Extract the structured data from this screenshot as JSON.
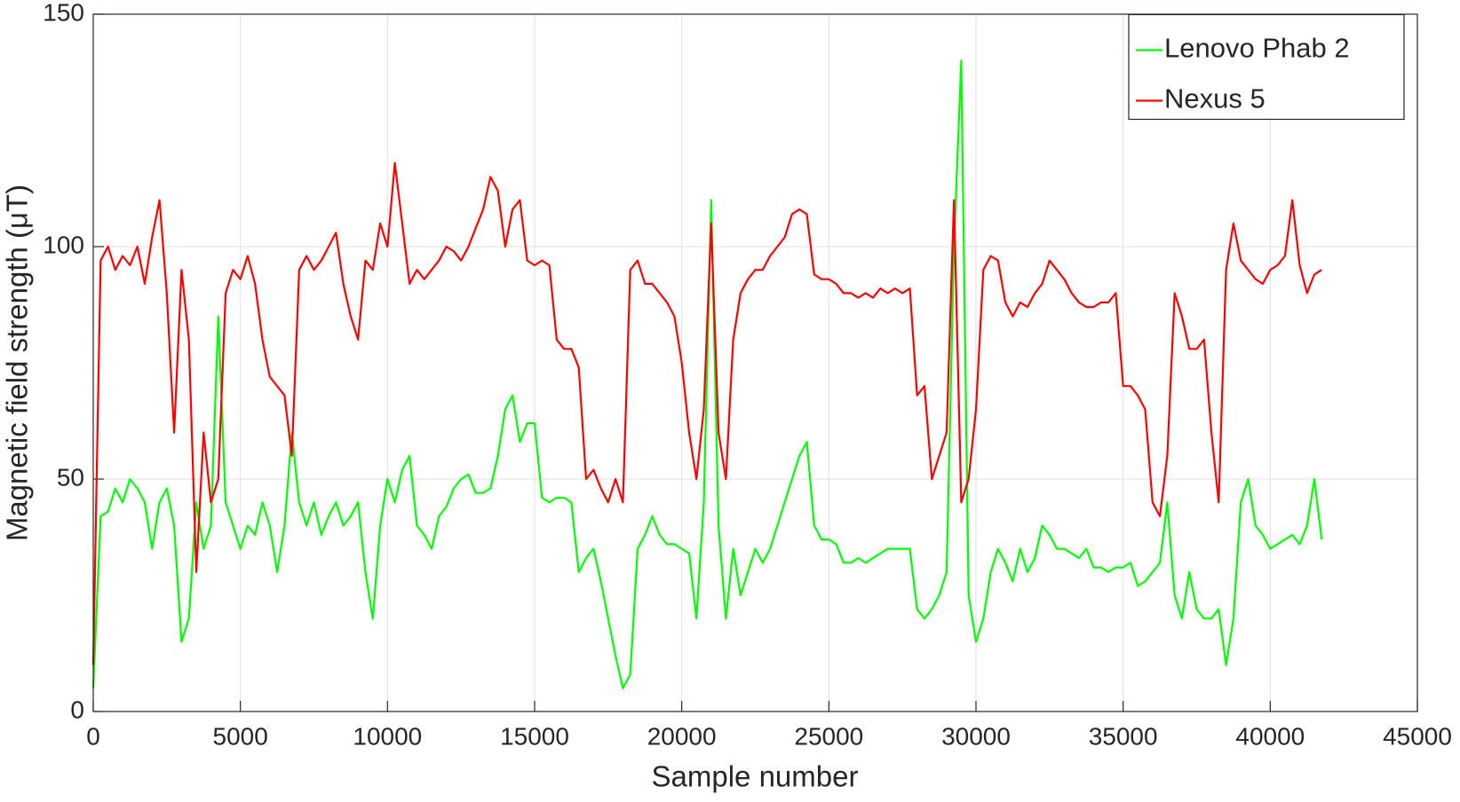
{
  "chart_data": {
    "type": "line",
    "xlabel": "Sample number",
    "ylabel": "Magnetic field strength (μT)",
    "x": [
      0,
      250,
      500,
      750,
      1000,
      1250,
      1500,
      1750,
      2000,
      2250,
      2500,
      2750,
      3000,
      3250,
      3500,
      3750,
      4000,
      4250,
      4500,
      4750,
      5000,
      5250,
      5500,
      5750,
      6000,
      6250,
      6500,
      6750,
      7000,
      7250,
      7500,
      7750,
      8000,
      8250,
      8500,
      8750,
      9000,
      9250,
      9500,
      9750,
      10000,
      10250,
      10500,
      10750,
      11000,
      11250,
      11500,
      11750,
      12000,
      12250,
      12500,
      12750,
      13000,
      13250,
      13500,
      13750,
      14000,
      14250,
      14500,
      14750,
      15000,
      15250,
      15500,
      15750,
      16000,
      16250,
      16500,
      16750,
      17000,
      17250,
      17500,
      17750,
      18000,
      18250,
      18500,
      18750,
      19000,
      19250,
      19500,
      19750,
      20000,
      20250,
      20500,
      20750,
      21000,
      21250,
      21500,
      21750,
      22000,
      22250,
      22500,
      22750,
      23000,
      23250,
      23500,
      23750,
      24000,
      24250,
      24500,
      24750,
      25000,
      25250,
      25500,
      25750,
      26000,
      26250,
      26500,
      26750,
      27000,
      27250,
      27500,
      27750,
      28000,
      28250,
      28500,
      28750,
      29000,
      29250,
      29500,
      29750,
      30000,
      30250,
      30500,
      30750,
      31000,
      31250,
      31500,
      31750,
      32000,
      32250,
      32500,
      32750,
      33000,
      33250,
      33500,
      33750,
      34000,
      34250,
      34500,
      34750,
      35000,
      35250,
      35500,
      35750,
      36000,
      36250,
      36500,
      36750,
      37000,
      37250,
      37500,
      37750,
      38000,
      38250,
      38500,
      38750,
      39000,
      39250,
      39500,
      39750,
      40000,
      40250,
      40500,
      40750,
      41000,
      41250,
      41500,
      41750
    ],
    "series": [
      {
        "name": "Lenovo Phab 2",
        "color": "#00ff00",
        "values": [
          5,
          42,
          43,
          48,
          45,
          50,
          48,
          45,
          35,
          45,
          48,
          40,
          15,
          20,
          45,
          35,
          40,
          85,
          45,
          40,
          35,
          40,
          38,
          45,
          40,
          30,
          40,
          60,
          45,
          40,
          45,
          38,
          42,
          45,
          40,
          42,
          45,
          30,
          20,
          40,
          50,
          45,
          52,
          55,
          40,
          38,
          35,
          42,
          44,
          48,
          50,
          51,
          47,
          47,
          48,
          55,
          65,
          68,
          58,
          62,
          62,
          46,
          45,
          46,
          46,
          45,
          30,
          33,
          35,
          28,
          20,
          12,
          5,
          8,
          35,
          38,
          42,
          38,
          36,
          36,
          35,
          34,
          20,
          45,
          110,
          40,
          20,
          35,
          25,
          30,
          35,
          32,
          35,
          40,
          45,
          50,
          55,
          58,
          40,
          37,
          37,
          36,
          32,
          32,
          33,
          32,
          33,
          34,
          35,
          35,
          35,
          35,
          22,
          20,
          22,
          25,
          30,
          100,
          140,
          25,
          15,
          20,
          30,
          35,
          32,
          28,
          35,
          30,
          33,
          40,
          38,
          35,
          35,
          34,
          33,
          35,
          31,
          31,
          30,
          31,
          31,
          32,
          27,
          28,
          30,
          32,
          45,
          25,
          20,
          30,
          22,
          20,
          20,
          22,
          10,
          20,
          45,
          50,
          40,
          38,
          35,
          36,
          37,
          38,
          36,
          40,
          50,
          37
        ]
      },
      {
        "name": "Nexus 5",
        "color": "#ff0000",
        "values": [
          10,
          97,
          100,
          95,
          98,
          96,
          100,
          92,
          102,
          110,
          90,
          60,
          95,
          80,
          30,
          60,
          45,
          50,
          90,
          95,
          93,
          98,
          92,
          80,
          72,
          70,
          68,
          55,
          95,
          98,
          95,
          97,
          100,
          103,
          92,
          85,
          80,
          97,
          95,
          105,
          100,
          118,
          105,
          92,
          95,
          93,
          95,
          97,
          100,
          99,
          97,
          100,
          104,
          108,
          115,
          112,
          100,
          108,
          110,
          97,
          96,
          97,
          96,
          80,
          78,
          78,
          74,
          50,
          52,
          48,
          45,
          50,
          45,
          95,
          97,
          92,
          92,
          90,
          88,
          85,
          75,
          60,
          50,
          65,
          105,
          60,
          50,
          80,
          90,
          93,
          95,
          95,
          98,
          100,
          102,
          107,
          108,
          107,
          94,
          93,
          93,
          92,
          90,
          90,
          89,
          90,
          89,
          91,
          90,
          91,
          90,
          91,
          68,
          70,
          50,
          55,
          60,
          110,
          45,
          50,
          65,
          95,
          98,
          97,
          88,
          85,
          88,
          87,
          90,
          92,
          97,
          95,
          93,
          90,
          88,
          87,
          87,
          88,
          88,
          90,
          70,
          70,
          68,
          65,
          45,
          42,
          55,
          90,
          85,
          78,
          78,
          80,
          60,
          45,
          95,
          105,
          97,
          95,
          93,
          92,
          95,
          96,
          98,
          110,
          96,
          90,
          94,
          95
        ]
      }
    ],
    "xlim": [
      0,
      45000
    ],
    "xticks": [
      0,
      5000,
      10000,
      15000,
      20000,
      25000,
      30000,
      35000,
      40000,
      45000
    ],
    "ylim": [
      0,
      150
    ],
    "yticks": [
      0,
      50,
      100,
      150
    ],
    "grid": true,
    "legend": "northeast"
  }
}
